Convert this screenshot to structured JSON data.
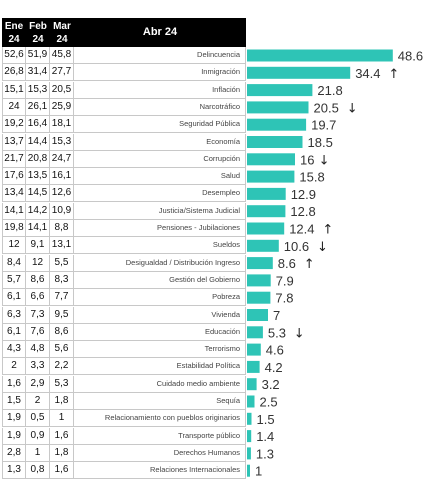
{
  "header": {
    "col1": "Ene 24",
    "col2": "Feb 24",
    "col3": "Mar 24",
    "bar_col": "Abr 24"
  },
  "colors": {
    "bar": "#2ec4b6",
    "header_bg": "#000000"
  },
  "chart_data": {
    "type": "bar",
    "orientation": "horizontal",
    "title": "",
    "categories": [
      "Delincuencia",
      "Inmigración",
      "Inflación",
      "Narcotráfico",
      "Seguridad Pública",
      "Economía",
      "Corrupción",
      "Salud",
      "Desempleo",
      "Justicia/Sistema Judicial",
      "Pensiones - Jubilaciones",
      "Sueldos",
      "Desigualdad / Distribución Ingreso",
      "Gestión del Gobierno",
      "Pobreza",
      "Vivienda",
      "Educación",
      "Terrorismo",
      "Estabilidad Política",
      "Cuidado medio ambiente",
      "Sequía",
      "Relacionamiento con pueblos originarios",
      "Transporte público",
      "Derechos Humanos",
      "Relaciones Internacionales"
    ],
    "series": [
      {
        "name": "Ene 24",
        "values": [
          "52,6",
          "26,8",
          "15,1",
          "24",
          "19,2",
          "13,7",
          "21,7",
          "17,6",
          "13,4",
          "14,1",
          "19,8",
          "12",
          "8,4",
          "5,7",
          "6,1",
          "6,3",
          "6,1",
          "4,3",
          "2",
          "1,6",
          "1,5",
          "1,9",
          "1,9",
          "2,8",
          "1,3"
        ]
      },
      {
        "name": "Feb 24",
        "values": [
          "51,9",
          "31,4",
          "15,3",
          "26,1",
          "16,4",
          "14,4",
          "20,8",
          "13,5",
          "14,5",
          "14,2",
          "14,1",
          "9,1",
          "12",
          "8,6",
          "6,6",
          "7,3",
          "7,6",
          "4,8",
          "3,3",
          "2,9",
          "2",
          "0,5",
          "0,9",
          "1",
          "0,8"
        ]
      },
      {
        "name": "Mar 24",
        "values": [
          "45,8",
          "27,7",
          "20,5",
          "25,9",
          "18,1",
          "15,3",
          "24,7",
          "16,1",
          "12,6",
          "10,9",
          "8,8",
          "13,1",
          "5,5",
          "8,3",
          "7,7",
          "9,5",
          "8,6",
          "5,6",
          "2,2",
          "5,3",
          "1,8",
          "1",
          "1,6",
          "1,8",
          "1,6"
        ]
      },
      {
        "name": "Abr 24",
        "values": [
          48.6,
          34.4,
          21.8,
          20.5,
          19.7,
          18.5,
          16,
          15.8,
          12.9,
          12.8,
          12.4,
          10.6,
          8.6,
          7.9,
          7.8,
          7,
          5.3,
          4.6,
          4.2,
          3.2,
          2.5,
          1.5,
          1.4,
          1.3,
          1
        ],
        "labels": [
          "48.6",
          "34.4",
          "21.8",
          "20.5",
          "19.7",
          "18.5",
          "16",
          "15.8",
          "12.9",
          "12.8",
          "12.4",
          "10.6",
          "8.6",
          "7.9",
          "7.8",
          "7",
          "5.3",
          "4.6",
          "4.2",
          "3.2",
          "2.5",
          "1.5",
          "1.4",
          "1.3",
          "1"
        ]
      }
    ],
    "trend_arrows": [
      "",
      "up",
      "",
      "down",
      "",
      "",
      "down",
      "",
      "",
      "",
      "up",
      "down",
      "up",
      "",
      "",
      "",
      "down",
      "",
      "",
      "",
      "",
      "",
      "",
      "",
      ""
    ],
    "xlim": [
      0,
      50
    ],
    "grid": false,
    "legend": "none"
  }
}
